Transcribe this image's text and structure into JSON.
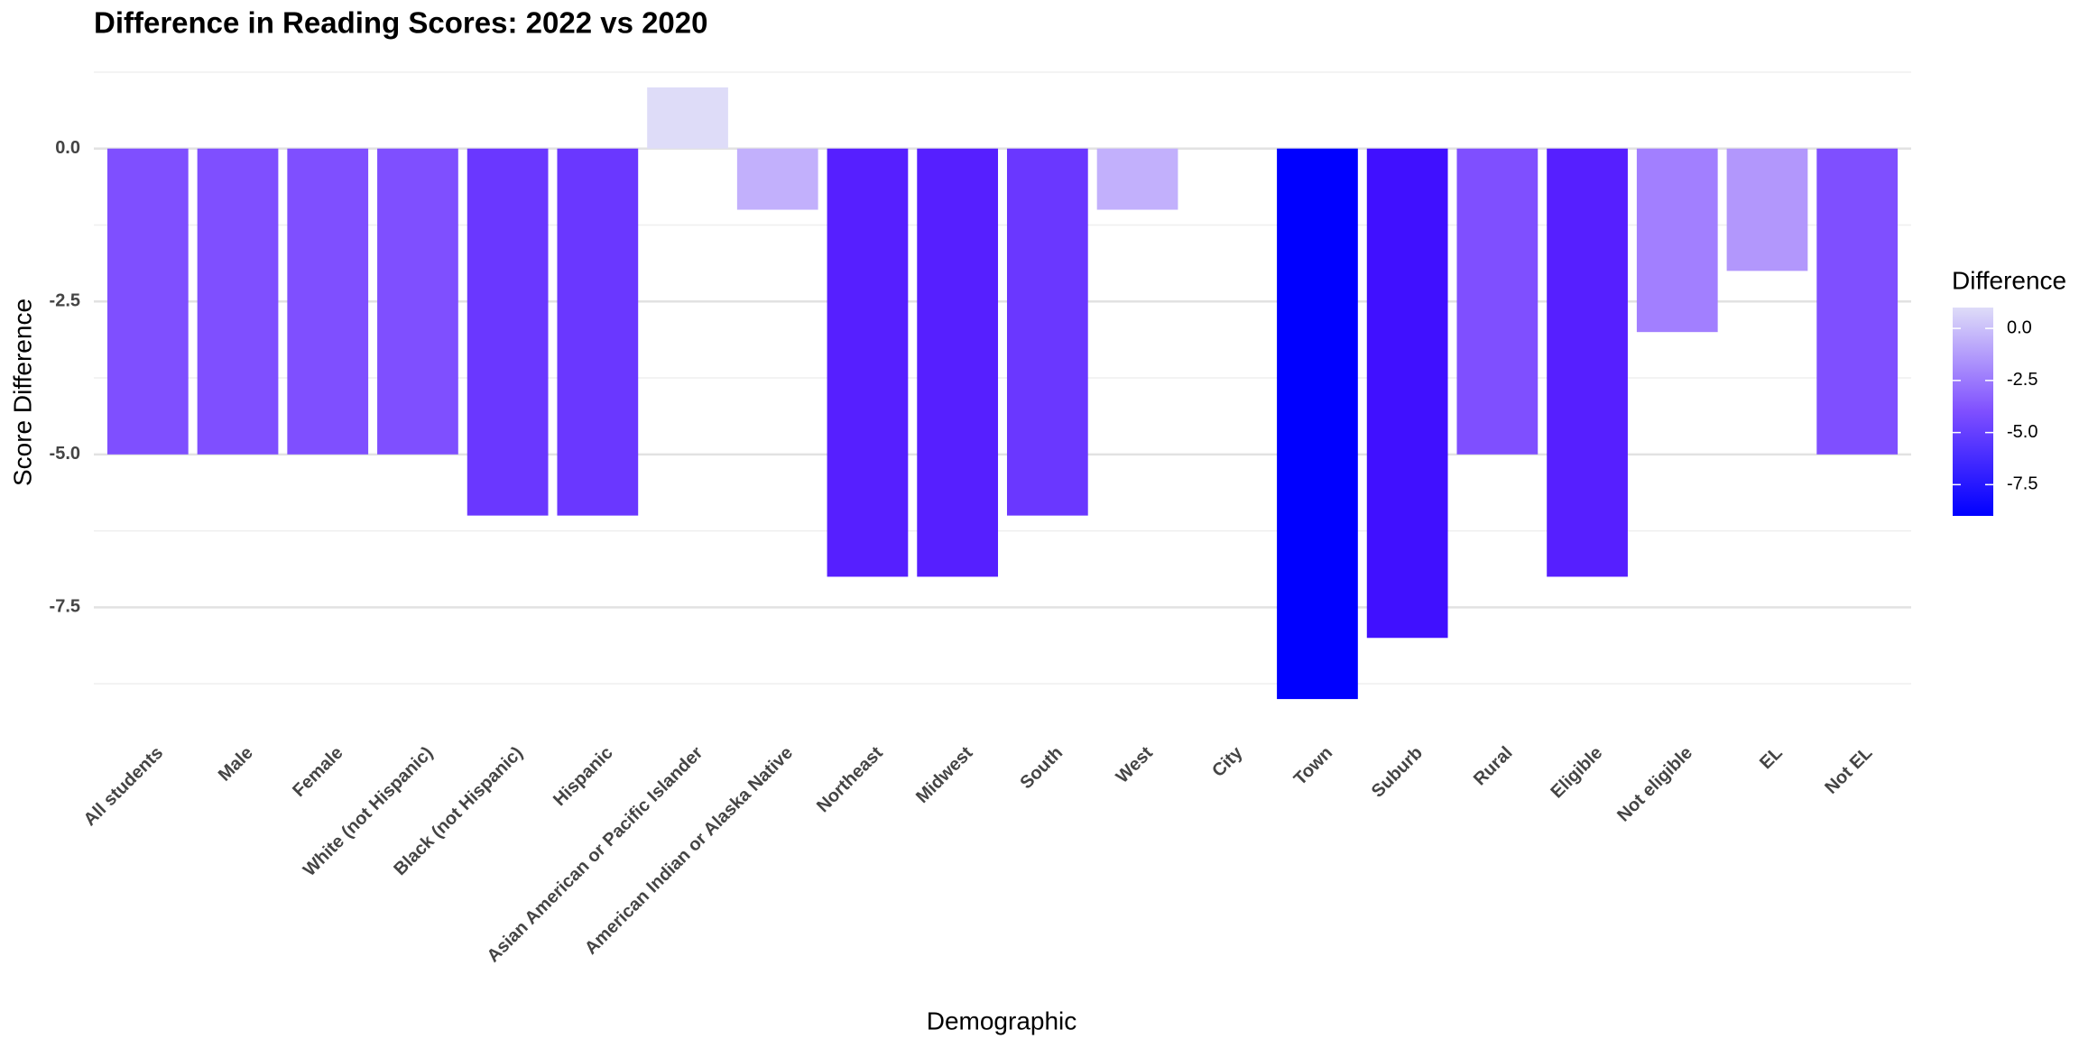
{
  "chart_data": {
    "type": "bar",
    "title": "Difference in Reading Scores: 2022 vs 2020",
    "x_label": "Demographic",
    "y_label": "Score Difference",
    "categories": [
      "All students",
      "Male",
      "Female",
      "White (not Hispanic)",
      "Black (not Hispanic)",
      "Hispanic",
      "Asian American or Pacific Islander",
      "American Indian or Alaska Native",
      "Northeast",
      "Midwest",
      "South",
      "West",
      "City",
      "Town",
      "Suburb",
      "Rural",
      "Eligible",
      "Not eligible",
      "EL",
      "Not EL"
    ],
    "values": [
      -5,
      -5,
      -5,
      -5,
      -6,
      -6,
      1,
      -1,
      -7,
      -7,
      -6,
      -1,
      0,
      -9,
      -8,
      -5,
      -7,
      -3,
      -2,
      -5
    ],
    "colors": [
      "#7f4fff",
      "#7f4fff",
      "#7f4fff",
      "#7f4fff",
      "#6a37ff",
      "#6a37ff",
      "#dedcf8",
      "#c2b0fc",
      "#561fff",
      "#561fff",
      "#6a37ff",
      "#c2b0fc",
      "#d0c8f9",
      "#0000ff",
      "#4010ff",
      "#7f4fff",
      "#561fff",
      "#a27fff",
      "#b297fc",
      "#7f4fff"
    ],
    "ylim": [
      -9.5,
      1.5
    ],
    "yticks": [
      {
        "value": 0,
        "label": "0.0"
      },
      {
        "value": -2.5,
        "label": "-2.5"
      },
      {
        "value": -5,
        "label": "-5.0"
      },
      {
        "value": -7.5,
        "label": "-7.5"
      }
    ],
    "grid": true,
    "colorbar": {
      "title": "Difference",
      "lim": [
        -9,
        1
      ],
      "colors": [
        "#0000ff",
        "#7f4fff",
        "#dedcf8"
      ],
      "ticks": [
        {
          "value": 0,
          "label": "0.0"
        },
        {
          "value": -2.5,
          "label": "-2.5"
        },
        {
          "value": -5,
          "label": "-5.0"
        },
        {
          "value": -7.5,
          "label": "-7.5"
        }
      ]
    }
  }
}
